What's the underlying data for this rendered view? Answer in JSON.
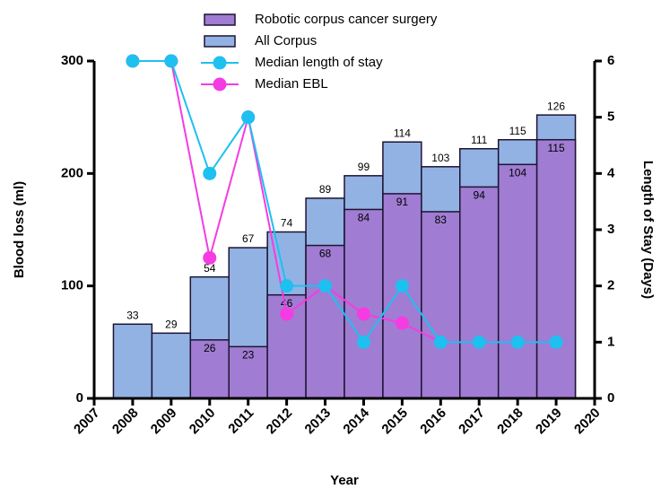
{
  "chart_data": {
    "type": "bar",
    "xlabel": "Year",
    "ylabel": "Blood loss (ml)",
    "y2label": "Length of Stay (Days)",
    "x": [
      2008,
      2009,
      2010,
      2011,
      2012,
      2013,
      2014,
      2015,
      2016,
      2017,
      2018,
      2019
    ],
    "xlim": [
      2007,
      2020
    ],
    "xticks": [
      2007,
      2008,
      2009,
      2010,
      2011,
      2012,
      2013,
      2014,
      2015,
      2016,
      2017,
      2018,
      2019,
      2020
    ],
    "ylim": [
      0,
      300
    ],
    "yticks": [
      0,
      100,
      200,
      300
    ],
    "y2lim": [
      0,
      6
    ],
    "y2ticks": [
      0,
      1,
      2,
      3,
      4,
      5,
      6
    ],
    "y3lim": [
      0,
      150
    ],
    "legend": "top",
    "series": [
      {
        "name": "Robotic corpus cancer surgery",
        "type": "bar",
        "axis": "y3",
        "color": "#a07cd2",
        "values": [
          null,
          null,
          26,
          23,
          46,
          68,
          84,
          91,
          83,
          94,
          104,
          115
        ]
      },
      {
        "name": "All Corpus",
        "type": "bar",
        "axis": "y3",
        "color": "#92b2e4",
        "values": [
          33,
          29,
          54,
          67,
          74,
          89,
          99,
          114,
          103,
          111,
          115,
          126
        ]
      },
      {
        "name": "Median length of stay",
        "type": "line",
        "axis": "y2",
        "color": "#1ec0f0",
        "values": [
          6,
          6,
          4,
          5,
          2,
          2,
          1,
          2,
          1,
          1,
          1,
          1
        ]
      },
      {
        "name": "Median EBL",
        "type": "line",
        "axis": "y",
        "color": "#f43ce2",
        "values": [
          300,
          300,
          125,
          250,
          75,
          100,
          75,
          67,
          50,
          50,
          50,
          50
        ]
      }
    ]
  }
}
